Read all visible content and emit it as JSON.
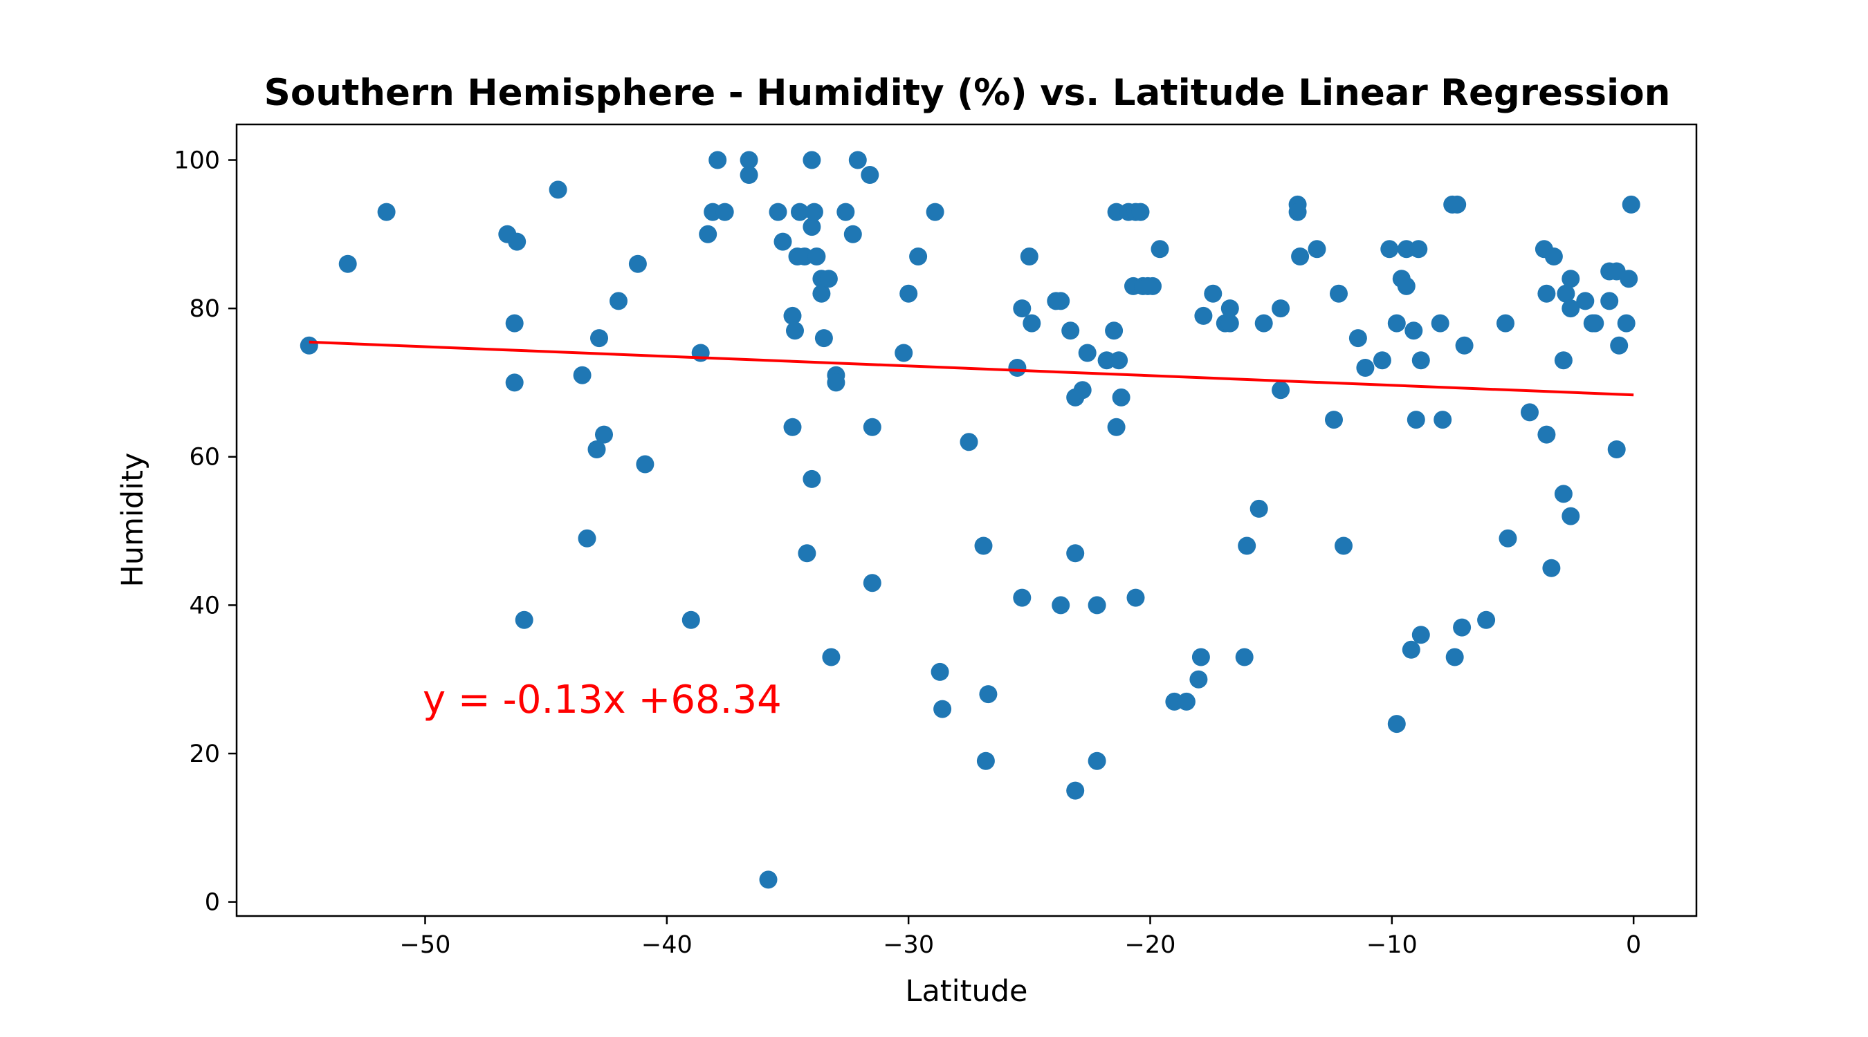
{
  "chart_data": {
    "type": "scatter",
    "title": "Southern Hemisphere - Humidity (%) vs. Latitude Linear Regression",
    "xlabel": "Latitude",
    "ylabel": "Humidity",
    "xlim": [
      -57.8,
      2.6
    ],
    "ylim": [
      -1.9,
      104.8
    ],
    "x_ticks": [
      -50,
      -40,
      -30,
      -20,
      -10,
      0
    ],
    "x_tick_labels": [
      "−50",
      "−40",
      "−30",
      "−20",
      "−10",
      "0"
    ],
    "y_ticks": [
      0,
      20,
      40,
      60,
      80,
      100
    ],
    "y_tick_labels": [
      "0",
      "20",
      "40",
      "60",
      "80",
      "100"
    ],
    "grid": false,
    "point_color": "#1f77b4",
    "line_color": "#ff0000",
    "regression": {
      "slope": -0.13,
      "intercept": 68.34,
      "x_range": [
        -54.8,
        0.0
      ]
    },
    "annotation": {
      "text": "y = -0.13x +68.34",
      "x": -50.1,
      "y": 25.5,
      "color": "#ff0000"
    },
    "points": [
      [
        -54.8,
        75
      ],
      [
        -53.2,
        86
      ],
      [
        -51.6,
        93
      ],
      [
        -46.6,
        90
      ],
      [
        -46.2,
        89
      ],
      [
        -46.3,
        78
      ],
      [
        -46.3,
        70
      ],
      [
        -45.9,
        38
      ],
      [
        -44.5,
        96
      ],
      [
        -43.5,
        71
      ],
      [
        -43.3,
        49
      ],
      [
        -42.9,
        61
      ],
      [
        -42.8,
        76
      ],
      [
        -42.6,
        63
      ],
      [
        -42.0,
        81
      ],
      [
        -41.2,
        86
      ],
      [
        -40.9,
        59
      ],
      [
        -39.0,
        38
      ],
      [
        -38.6,
        74
      ],
      [
        -38.3,
        90
      ],
      [
        -38.1,
        93
      ],
      [
        -37.9,
        100
      ],
      [
        -37.6,
        93
      ],
      [
        -36.6,
        100
      ],
      [
        -36.6,
        98
      ],
      [
        -35.8,
        3
      ],
      [
        -35.4,
        93
      ],
      [
        -35.2,
        89
      ],
      [
        -34.8,
        79
      ],
      [
        -34.8,
        64
      ],
      [
        -34.7,
        77
      ],
      [
        -34.6,
        87
      ],
      [
        -34.5,
        93
      ],
      [
        -34.3,
        87
      ],
      [
        -34.2,
        47
      ],
      [
        -34.0,
        100
      ],
      [
        -34.0,
        91
      ],
      [
        -34.0,
        57
      ],
      [
        -33.9,
        93
      ],
      [
        -33.8,
        87
      ],
      [
        -33.6,
        84
      ],
      [
        -33.6,
        82
      ],
      [
        -33.5,
        76
      ],
      [
        -33.3,
        84
      ],
      [
        -33.2,
        33
      ],
      [
        -33.0,
        71
      ],
      [
        -33.0,
        70
      ],
      [
        -32.6,
        93
      ],
      [
        -32.3,
        90
      ],
      [
        -32.1,
        100
      ],
      [
        -31.6,
        98
      ],
      [
        -31.5,
        64
      ],
      [
        -31.5,
        43
      ],
      [
        -30.2,
        74
      ],
      [
        -30.0,
        82
      ],
      [
        -29.6,
        87
      ],
      [
        -28.9,
        93
      ],
      [
        -28.7,
        31
      ],
      [
        -28.6,
        26
      ],
      [
        -27.5,
        62
      ],
      [
        -26.9,
        48
      ],
      [
        -26.8,
        19
      ],
      [
        -26.7,
        28
      ],
      [
        -25.5,
        72
      ],
      [
        -25.3,
        41
      ],
      [
        -25.3,
        80
      ],
      [
        -25.0,
        87
      ],
      [
        -24.9,
        78
      ],
      [
        -23.9,
        81
      ],
      [
        -23.7,
        81
      ],
      [
        -23.7,
        40
      ],
      [
        -23.3,
        77
      ],
      [
        -23.1,
        68
      ],
      [
        -23.1,
        47
      ],
      [
        -23.1,
        15
      ],
      [
        -22.8,
        69
      ],
      [
        -22.6,
        74
      ],
      [
        -22.2,
        40
      ],
      [
        -22.2,
        19
      ],
      [
        -21.8,
        73
      ],
      [
        -21.5,
        77
      ],
      [
        -21.4,
        64
      ],
      [
        -21.3,
        73
      ],
      [
        -21.2,
        68
      ],
      [
        -21.4,
        93
      ],
      [
        -20.9,
        93
      ],
      [
        -20.7,
        83
      ],
      [
        -20.6,
        93
      ],
      [
        -20.6,
        41
      ],
      [
        -20.4,
        93
      ],
      [
        -20.3,
        83
      ],
      [
        -20.1,
        83
      ],
      [
        -19.9,
        83
      ],
      [
        -19.6,
        88
      ],
      [
        -19.0,
        27
      ],
      [
        -18.5,
        27
      ],
      [
        -18.0,
        30
      ],
      [
        -17.9,
        33
      ],
      [
        -17.8,
        79
      ],
      [
        -17.4,
        82
      ],
      [
        -16.9,
        78
      ],
      [
        -16.7,
        78
      ],
      [
        -16.7,
        80
      ],
      [
        -16.1,
        33
      ],
      [
        -16.0,
        48
      ],
      [
        -15.5,
        53
      ],
      [
        -15.3,
        78
      ],
      [
        -14.6,
        69
      ],
      [
        -14.6,
        80
      ],
      [
        -13.9,
        94
      ],
      [
        -13.9,
        93
      ],
      [
        -13.8,
        87
      ],
      [
        -13.1,
        88
      ],
      [
        -12.4,
        65
      ],
      [
        -12.2,
        82
      ],
      [
        -12.0,
        48
      ],
      [
        -11.4,
        76
      ],
      [
        -11.1,
        72
      ],
      [
        -10.4,
        73
      ],
      [
        -10.1,
        88
      ],
      [
        -9.8,
        24
      ],
      [
        -9.8,
        78
      ],
      [
        -9.6,
        84
      ],
      [
        -9.4,
        88
      ],
      [
        -9.4,
        83
      ],
      [
        -9.2,
        34
      ],
      [
        -9.1,
        77
      ],
      [
        -9.0,
        65
      ],
      [
        -8.9,
        88
      ],
      [
        -8.8,
        73
      ],
      [
        -8.8,
        36
      ],
      [
        -8.0,
        78
      ],
      [
        -7.9,
        65
      ],
      [
        -7.5,
        94
      ],
      [
        -7.3,
        94
      ],
      [
        -7.4,
        33
      ],
      [
        -7.1,
        37
      ],
      [
        -7.0,
        75
      ],
      [
        -6.1,
        38
      ],
      [
        -5.3,
        78
      ],
      [
        -5.2,
        49
      ],
      [
        -4.3,
        66
      ],
      [
        -3.7,
        88
      ],
      [
        -3.6,
        82
      ],
      [
        -3.6,
        63
      ],
      [
        -3.4,
        45
      ],
      [
        -3.3,
        87
      ],
      [
        -2.9,
        55
      ],
      [
        -2.9,
        73
      ],
      [
        -2.8,
        82
      ],
      [
        -2.6,
        84
      ],
      [
        -2.6,
        80
      ],
      [
        -2.6,
        52
      ],
      [
        -2.0,
        81
      ],
      [
        -1.7,
        78
      ],
      [
        -1.6,
        78
      ],
      [
        -1.0,
        85
      ],
      [
        -1.0,
        81
      ],
      [
        -0.7,
        85
      ],
      [
        -0.7,
        61
      ],
      [
        -0.6,
        75
      ],
      [
        -0.3,
        78
      ],
      [
        -0.2,
        84
      ],
      [
        -0.1,
        94
      ]
    ]
  }
}
